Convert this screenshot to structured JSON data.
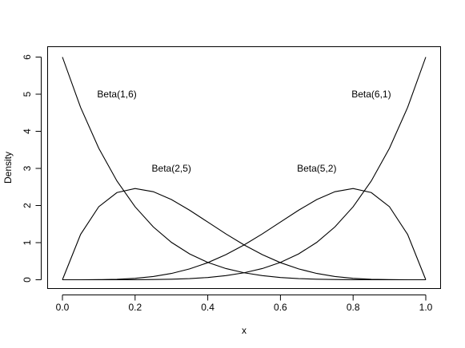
{
  "chart_data": {
    "type": "line",
    "title": "",
    "xlabel": "x",
    "ylabel": "Density",
    "xlim": [
      0,
      1
    ],
    "ylim": [
      0,
      6
    ],
    "xticks": [
      "0.0",
      "0.2",
      "0.4",
      "0.6",
      "0.8",
      "1.0"
    ],
    "yticks": [
      "0",
      "1",
      "2",
      "3",
      "4",
      "5",
      "6"
    ],
    "grid": false,
    "series": [
      {
        "name": "Beta(1,6)",
        "x": [
          0,
          0.05,
          0.1,
          0.15,
          0.2,
          0.25,
          0.3,
          0.35,
          0.4,
          0.45,
          0.5,
          0.55,
          0.6,
          0.65,
          0.7,
          0.75,
          0.8,
          0.85,
          0.9,
          0.95,
          1
        ],
        "values": [
          6.0,
          4.643,
          3.543,
          2.662,
          1.966,
          1.424,
          1.008,
          0.696,
          0.467,
          0.302,
          0.188,
          0.111,
          0.061,
          0.031,
          0.015,
          0.006,
          0.002,
          0.0005,
          0.0001,
          0.0,
          0.0
        ]
      },
      {
        "name": "Beta(2,5)",
        "x": [
          0,
          0.05,
          0.1,
          0.15,
          0.2,
          0.25,
          0.3,
          0.35,
          0.4,
          0.45,
          0.5,
          0.55,
          0.6,
          0.65,
          0.7,
          0.75,
          0.8,
          0.85,
          0.9,
          0.95,
          1
        ],
        "values": [
          0.0,
          1.222,
          1.968,
          2.349,
          2.458,
          2.373,
          2.161,
          1.874,
          1.555,
          1.235,
          0.938,
          0.677,
          0.461,
          0.293,
          0.17,
          0.088,
          0.038,
          0.013,
          0.003,
          0.0002,
          0.0
        ]
      },
      {
        "name": "Beta(5,2)",
        "x": [
          0,
          0.05,
          0.1,
          0.15,
          0.2,
          0.25,
          0.3,
          0.35,
          0.4,
          0.45,
          0.5,
          0.55,
          0.6,
          0.65,
          0.7,
          0.75,
          0.8,
          0.85,
          0.9,
          0.95,
          1
        ],
        "values": [
          0.0,
          0.0002,
          0.003,
          0.013,
          0.038,
          0.088,
          0.17,
          0.293,
          0.461,
          0.677,
          0.938,
          1.235,
          1.555,
          1.874,
          2.161,
          2.373,
          2.458,
          2.349,
          1.968,
          1.222,
          0.0
        ]
      },
      {
        "name": "Beta(6,1)",
        "x": [
          0,
          0.05,
          0.1,
          0.15,
          0.2,
          0.25,
          0.3,
          0.35,
          0.4,
          0.45,
          0.5,
          0.55,
          0.6,
          0.65,
          0.7,
          0.75,
          0.8,
          0.85,
          0.9,
          0.95,
          1
        ],
        "values": [
          0.0,
          0.0,
          0.0001,
          0.0005,
          0.002,
          0.006,
          0.015,
          0.031,
          0.061,
          0.111,
          0.188,
          0.302,
          0.467,
          0.696,
          1.008,
          1.424,
          1.966,
          2.662,
          3.543,
          4.643,
          6.0
        ]
      }
    ],
    "annotations": [
      {
        "text": "Beta(1,6)",
        "x": 0.15,
        "y": 5
      },
      {
        "text": "Beta(2,5)",
        "x": 0.3,
        "y": 3
      },
      {
        "text": "Beta(5,2)",
        "x": 0.7,
        "y": 3
      },
      {
        "text": "Beta(6,1)",
        "x": 0.85,
        "y": 5
      }
    ]
  }
}
